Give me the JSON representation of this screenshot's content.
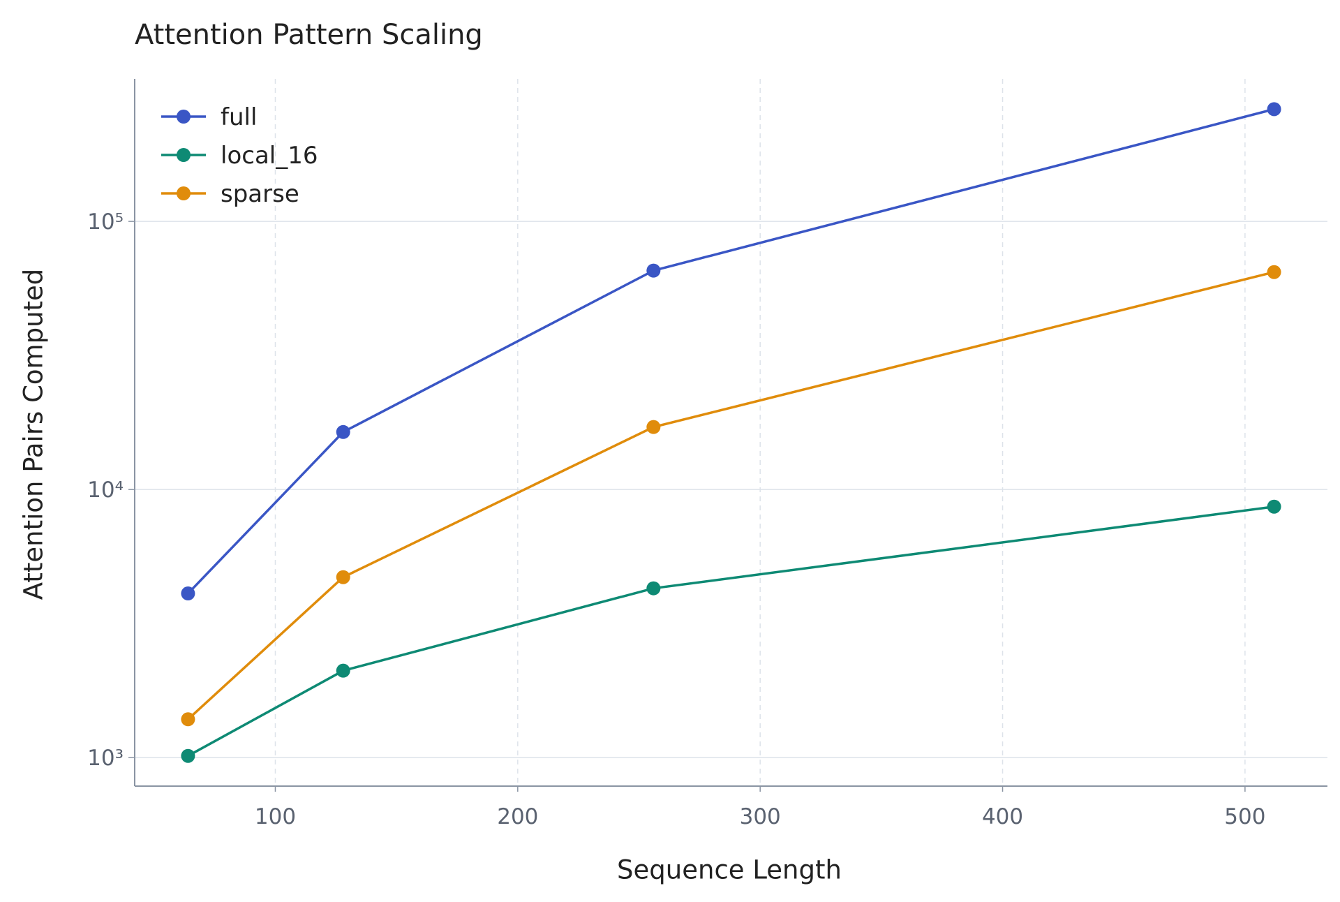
{
  "chart_data": {
    "type": "line",
    "title": "Attention Pattern Scaling",
    "x_label": "Sequence Length",
    "y_label": "Attention Pairs Computed",
    "x": [
      64,
      128,
      256,
      512
    ],
    "series": [
      {
        "name": "full",
        "color": "#3a56c5",
        "values": [
          4096,
          16384,
          65536,
          262144
        ]
      },
      {
        "name": "local_16",
        "color": "#0e8a74",
        "values": [
          1015,
          2110,
          4280,
          8630
        ]
      },
      {
        "name": "sparse",
        "color": "#e08c0b",
        "values": [
          1390,
          4710,
          17100,
          64700
        ]
      }
    ],
    "xlim": [
      42,
      534
    ],
    "xticks": [
      100,
      200,
      300,
      400,
      500
    ],
    "ylim": [
      783,
      340000
    ],
    "log_y": true,
    "yticks": [
      {
        "value": 1000,
        "label": "10³"
      },
      {
        "value": 10000,
        "label": "10⁴"
      },
      {
        "value": 100000,
        "label": "10⁵"
      }
    ],
    "grid": true,
    "legend": "upper-left"
  }
}
